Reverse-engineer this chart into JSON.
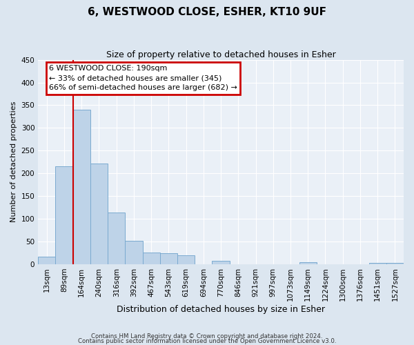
{
  "title": "6, WESTWOOD CLOSE, ESHER, KT10 9UF",
  "subtitle": "Size of property relative to detached houses in Esher",
  "xlabel": "Distribution of detached houses by size in Esher",
  "ylabel": "Number of detached properties",
  "bin_labels": [
    "13sqm",
    "89sqm",
    "164sqm",
    "240sqm",
    "316sqm",
    "392sqm",
    "467sqm",
    "543sqm",
    "619sqm",
    "694sqm",
    "770sqm",
    "846sqm",
    "921sqm",
    "997sqm",
    "1073sqm",
    "1149sqm",
    "1224sqm",
    "1300sqm",
    "1376sqm",
    "1451sqm",
    "1527sqm"
  ],
  "bar_heights": [
    17,
    215,
    340,
    222,
    113,
    52,
    25,
    24,
    20,
    0,
    8,
    0,
    0,
    0,
    0,
    5,
    0,
    0,
    0,
    3,
    3
  ],
  "bar_color": "#bed3e8",
  "bar_edge_color": "#7aaad0",
  "vline_color": "#cc0000",
  "vline_x_index": 2,
  "ylim": [
    0,
    450
  ],
  "yticks": [
    0,
    50,
    100,
    150,
    200,
    250,
    300,
    350,
    400,
    450
  ],
  "annotation_title": "6 WESTWOOD CLOSE: 190sqm",
  "annotation_line1": "← 33% of detached houses are smaller (345)",
  "annotation_line2": "66% of semi-detached houses are larger (682) →",
  "annotation_box_color": "#cc0000",
  "footer_line1": "Contains HM Land Registry data © Crown copyright and database right 2024.",
  "footer_line2": "Contains public sector information licensed under the Open Government Licence v3.0.",
  "bg_color": "#dce6f0",
  "plot_bg_color": "#eaf0f7",
  "grid_color": "#ffffff",
  "title_fontsize": 11,
  "subtitle_fontsize": 9,
  "xlabel_fontsize": 9,
  "ylabel_fontsize": 8,
  "tick_fontsize": 7.5,
  "annotation_fontsize": 8
}
